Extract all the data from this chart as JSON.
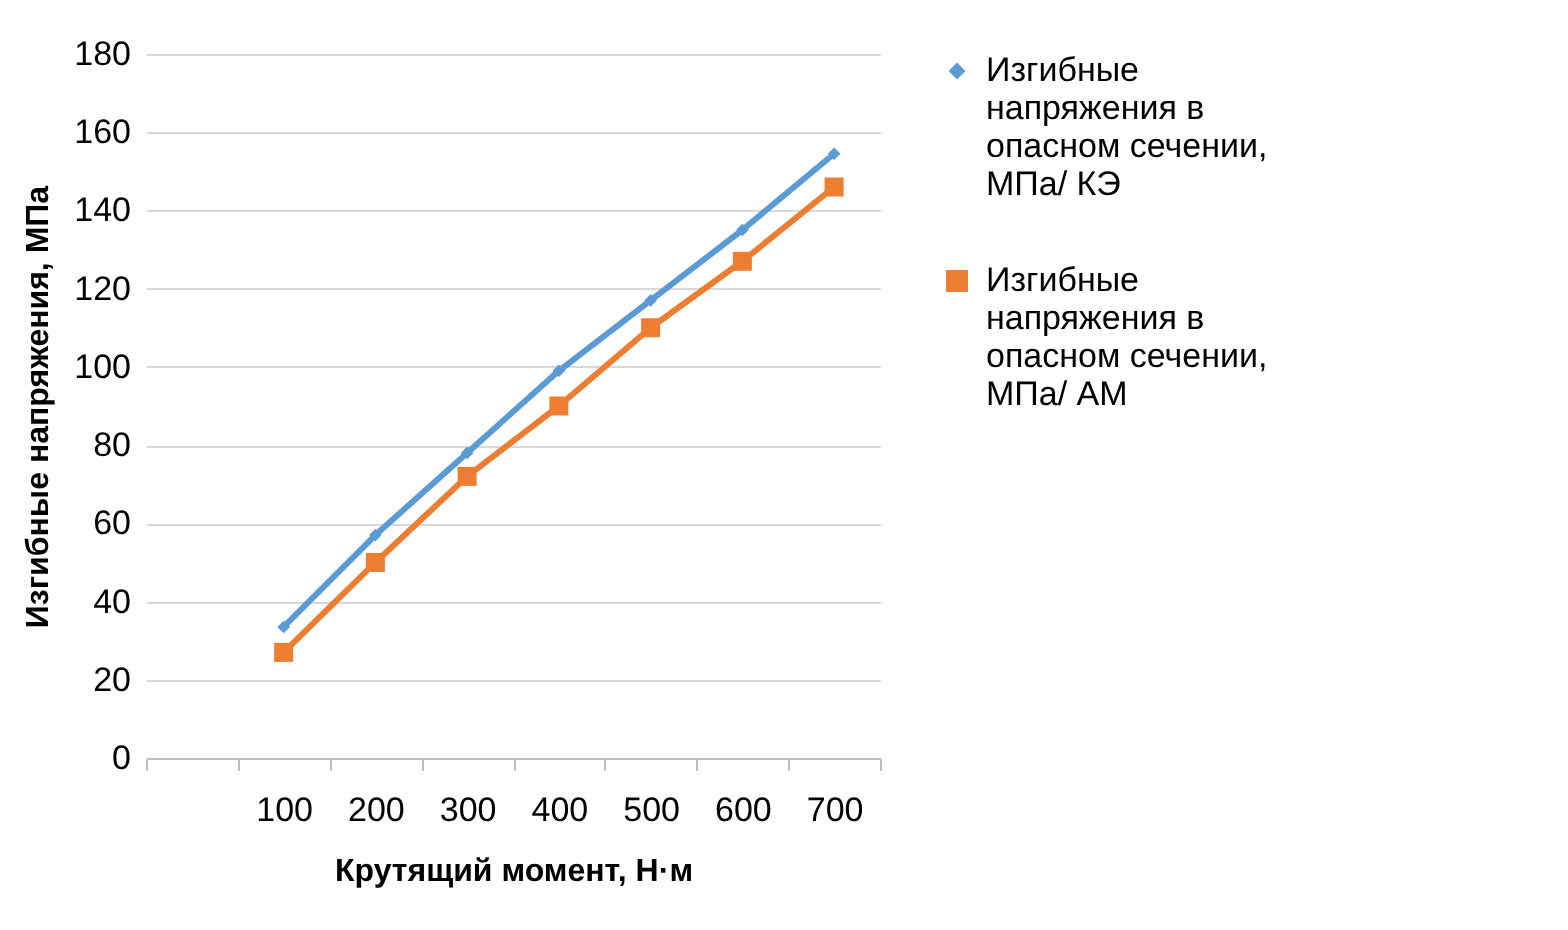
{
  "chart_data": {
    "type": "line",
    "xlabel": "Крутящий момент, Н·м",
    "ylabel": "Изгибные напряжения, МПа",
    "categories": [
      null,
      "100",
      "200",
      "300",
      "400",
      "500",
      "600",
      "700"
    ],
    "series": [
      {
        "name": "Изгибные напряжения в опасном сечении, МПа/ КЭ",
        "color": "#5b9bd5",
        "marker": "diamond",
        "values": [
          null,
          33.5,
          57,
          78,
          99,
          117,
          135,
          154.5
        ]
      },
      {
        "name": "Изгибные напряжения в опасном сечении, МПа/ АМ",
        "color": "#ed7d31",
        "marker": "square",
        "values": [
          null,
          27,
          50,
          72,
          90,
          110,
          127,
          146
        ]
      }
    ],
    "ylim": [
      0,
      180
    ],
    "yticks": [
      0,
      20,
      40,
      60,
      80,
      100,
      120,
      140,
      160,
      180
    ],
    "grid": "y",
    "legend": "right",
    "line_style": "solid"
  }
}
